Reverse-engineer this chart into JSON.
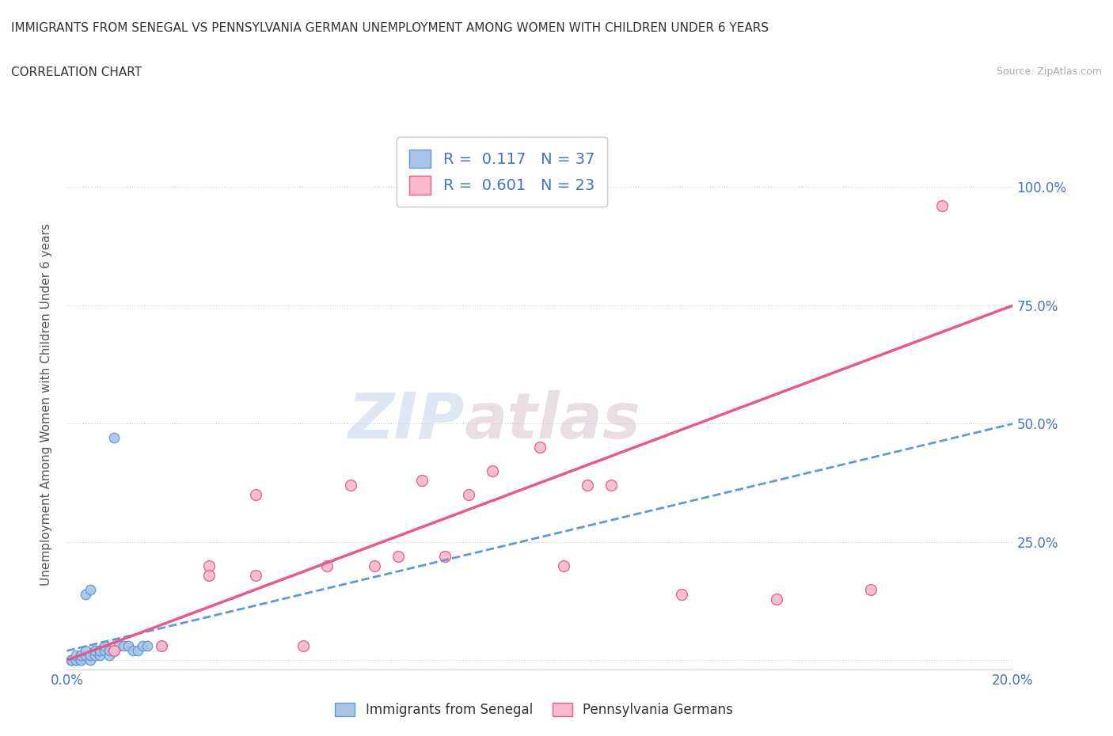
{
  "title": "IMMIGRANTS FROM SENEGAL VS PENNSYLVANIA GERMAN UNEMPLOYMENT AMONG WOMEN WITH CHILDREN UNDER 6 YEARS",
  "subtitle": "CORRELATION CHART",
  "source": "Source: ZipAtlas.com",
  "xlabel": "",
  "ylabel": "Unemployment Among Women with Children Under 6 years",
  "xlim": [
    0.0,
    0.2
  ],
  "ylim": [
    -0.02,
    1.1
  ],
  "xticks": [
    0.0,
    0.05,
    0.1,
    0.15,
    0.2
  ],
  "xticklabels": [
    "0.0%",
    "",
    "",
    "",
    "20.0%"
  ],
  "yticks": [
    0.0,
    0.25,
    0.5,
    0.75,
    1.0
  ],
  "yticklabels": [
    "",
    "25.0%",
    "50.0%",
    "75.0%",
    "100.0%"
  ],
  "watermark_zip": "ZIP",
  "watermark_atlas": "atlas",
  "senegal_color": "#aac4e8",
  "senegal_color_dark": "#5b9bd5",
  "penn_color": "#f9b8cb",
  "penn_color_dark": "#e8588a",
  "senegal_R": 0.117,
  "senegal_N": 37,
  "penn_R": 0.601,
  "penn_N": 23,
  "legend_label_senegal": "Immigrants from Senegal",
  "legend_label_penn": "Pennsylvania Germans",
  "senegal_x": [
    0.001,
    0.001,
    0.001,
    0.002,
    0.002,
    0.002,
    0.003,
    0.003,
    0.003,
    0.003,
    0.004,
    0.004,
    0.004,
    0.005,
    0.005,
    0.005,
    0.006,
    0.006,
    0.006,
    0.007,
    0.007,
    0.007,
    0.008,
    0.008,
    0.009,
    0.009,
    0.01,
    0.01,
    0.011,
    0.012,
    0.013,
    0.014,
    0.015,
    0.016,
    0.017,
    0.02,
    0.01
  ],
  "senegal_y": [
    0.0,
    0.0,
    0.0,
    0.0,
    0.0,
    0.01,
    0.0,
    0.0,
    0.01,
    0.01,
    0.01,
    0.02,
    0.14,
    0.0,
    0.01,
    0.15,
    0.01,
    0.02,
    0.02,
    0.01,
    0.02,
    0.02,
    0.02,
    0.03,
    0.01,
    0.02,
    0.02,
    0.02,
    0.03,
    0.03,
    0.03,
    0.02,
    0.02,
    0.03,
    0.03,
    0.03,
    0.47
  ],
  "penn_x": [
    0.01,
    0.02,
    0.03,
    0.03,
    0.04,
    0.04,
    0.05,
    0.055,
    0.06,
    0.065,
    0.07,
    0.075,
    0.08,
    0.085,
    0.09,
    0.1,
    0.105,
    0.11,
    0.115,
    0.13,
    0.15,
    0.17,
    0.185
  ],
  "penn_y": [
    0.02,
    0.03,
    0.2,
    0.18,
    0.18,
    0.35,
    0.03,
    0.2,
    0.37,
    0.2,
    0.22,
    0.38,
    0.22,
    0.35,
    0.4,
    0.45,
    0.2,
    0.37,
    0.37,
    0.14,
    0.13,
    0.15,
    0.96
  ],
  "penn_trend_x": [
    0.0,
    0.2
  ],
  "penn_trend_y": [
    0.0,
    0.75
  ],
  "senegal_trend_x": [
    0.0,
    0.2
  ],
  "senegal_trend_y": [
    0.02,
    0.5
  ]
}
